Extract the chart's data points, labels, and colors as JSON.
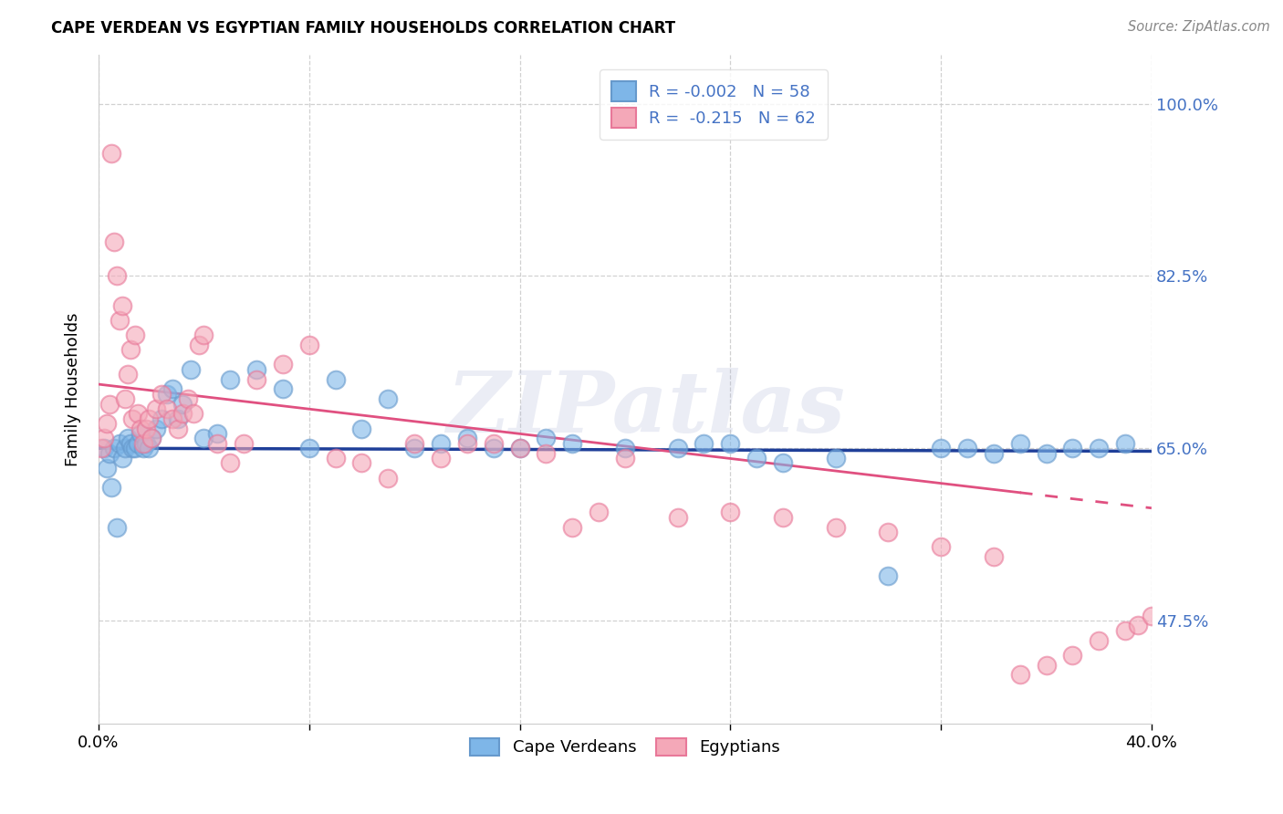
{
  "title": "CAPE VERDEAN VS EGYPTIAN FAMILY HOUSEHOLDS CORRELATION CHART",
  "source": "Source: ZipAtlas.com",
  "ylabel": "Family Households",
  "xlim": [
    0.0,
    40.0
  ],
  "ylim": [
    37.0,
    105.0
  ],
  "ytick_values": [
    47.5,
    65.0,
    82.5,
    100.0
  ],
  "ytick_labels": [
    "47.5%",
    "65.0%",
    "82.5%",
    "100.0%"
  ],
  "xtick_values": [
    0,
    8,
    16,
    24,
    32,
    40
  ],
  "legend_blue_label": "R = -0.002   N = 58",
  "legend_pink_label": "R =  -0.215   N = 62",
  "legend_cape_label": "Cape Verdeans",
  "legend_egypt_label": "Egyptians",
  "blue_color": "#7EB6E8",
  "pink_color": "#F4A8B8",
  "blue_edge_color": "#6699CC",
  "pink_edge_color": "#E87899",
  "trend_blue_color": "#1F3F99",
  "trend_pink_color": "#E05080",
  "blue_R": -0.002,
  "pink_R": -0.215,
  "blue_scatter_x": [
    0.2,
    0.3,
    0.4,
    0.5,
    0.6,
    0.7,
    0.8,
    0.9,
    1.0,
    1.1,
    1.2,
    1.3,
    1.4,
    1.5,
    1.6,
    1.7,
    1.8,
    1.9,
    2.0,
    2.2,
    2.4,
    2.6,
    2.8,
    3.0,
    3.2,
    3.5,
    4.0,
    4.5,
    5.0,
    6.0,
    7.0,
    8.0,
    9.0,
    10.0,
    11.0,
    12.0,
    13.0,
    14.0,
    15.0,
    16.0,
    17.0,
    18.0,
    20.0,
    22.0,
    23.0,
    24.0,
    25.0,
    26.0,
    28.0,
    30.0,
    32.0,
    33.0,
    34.0,
    35.0,
    36.0,
    37.0,
    38.0,
    39.0
  ],
  "blue_scatter_y": [
    65.0,
    63.0,
    64.5,
    61.0,
    65.0,
    57.0,
    65.5,
    64.0,
    65.0,
    66.0,
    65.5,
    65.0,
    65.0,
    65.5,
    66.5,
    65.0,
    65.5,
    65.0,
    66.0,
    67.0,
    68.0,
    70.5,
    71.0,
    68.0,
    69.5,
    73.0,
    66.0,
    66.5,
    72.0,
    73.0,
    71.0,
    65.0,
    72.0,
    67.0,
    70.0,
    65.0,
    65.5,
    66.0,
    65.0,
    65.0,
    66.0,
    65.5,
    65.0,
    65.0,
    65.5,
    65.5,
    64.0,
    63.5,
    64.0,
    52.0,
    65.0,
    65.0,
    64.5,
    65.5,
    64.5,
    65.0,
    65.0,
    65.5
  ],
  "pink_scatter_x": [
    0.1,
    0.2,
    0.3,
    0.4,
    0.5,
    0.6,
    0.7,
    0.8,
    0.9,
    1.0,
    1.1,
    1.2,
    1.3,
    1.4,
    1.5,
    1.6,
    1.7,
    1.8,
    1.9,
    2.0,
    2.2,
    2.4,
    2.6,
    2.8,
    3.0,
    3.2,
    3.4,
    3.6,
    3.8,
    4.0,
    4.5,
    5.0,
    5.5,
    6.0,
    7.0,
    8.0,
    9.0,
    10.0,
    11.0,
    12.0,
    13.0,
    14.0,
    15.0,
    16.0,
    17.0,
    18.0,
    19.0,
    20.0,
    22.0,
    24.0,
    26.0,
    28.0,
    30.0,
    32.0,
    34.0,
    35.0,
    36.0,
    37.0,
    38.0,
    39.0,
    39.5,
    40.0
  ],
  "pink_scatter_y": [
    65.0,
    66.0,
    67.5,
    69.5,
    95.0,
    86.0,
    82.5,
    78.0,
    79.5,
    70.0,
    72.5,
    75.0,
    68.0,
    76.5,
    68.5,
    67.0,
    65.5,
    67.0,
    68.0,
    66.0,
    69.0,
    70.5,
    69.0,
    68.0,
    67.0,
    68.5,
    70.0,
    68.5,
    75.5,
    76.5,
    65.5,
    63.5,
    65.5,
    72.0,
    73.5,
    75.5,
    64.0,
    63.5,
    62.0,
    65.5,
    64.0,
    65.5,
    65.5,
    65.0,
    64.5,
    57.0,
    58.5,
    64.0,
    58.0,
    58.5,
    58.0,
    57.0,
    56.5,
    55.0,
    54.0,
    42.0,
    43.0,
    44.0,
    45.5,
    46.5,
    47.0,
    48.0
  ],
  "background_color": "#ffffff",
  "grid_color": "#cccccc",
  "axis_label_color": "#4472C4",
  "watermark_text": "ZIPatlas",
  "watermark_color": "#b0b8d8",
  "watermark_alpha": 0.25,
  "blue_trend_y_at_0": 65.0,
  "blue_trend_y_at_40": 64.7,
  "pink_trend_y_at_0": 71.5,
  "pink_trend_y_at_35": 60.5,
  "pink_solid_end_x": 35.0,
  "pink_dash_end_x": 40.0
}
